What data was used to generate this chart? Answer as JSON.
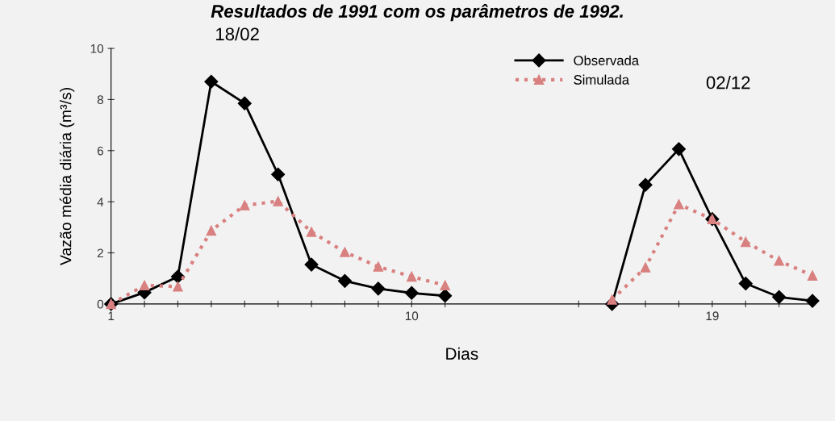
{
  "chart_data": {
    "type": "line",
    "title": "Resultados de 1991 com os parâmetros de 1992.",
    "xlabel": "Dias",
    "ylabel": "Vazão média diária (m³/s)",
    "annotations": [
      "18/02",
      "02/12"
    ],
    "x": [
      1,
      2,
      3,
      4,
      5,
      6,
      7,
      8,
      9,
      10,
      11,
      12,
      16,
      17,
      18,
      19,
      20,
      21,
      22
    ],
    "series": [
      {
        "name": "Observada",
        "color": "#000000",
        "marker": "diamond",
        "line_style": "solid",
        "values": [
          0,
          0.45,
          1.07,
          8.7,
          7.85,
          5.07,
          1.54,
          0.9,
          0.6,
          0.43,
          0.32,
          null,
          0,
          4.66,
          6.06,
          3.32,
          0.8,
          0.27,
          0.12
        ]
      },
      {
        "name": "Simulada",
        "color": "#d98080",
        "marker": "triangle",
        "line_style": "dotted",
        "values": [
          0,
          0.73,
          0.68,
          2.87,
          3.86,
          4.02,
          2.82,
          2.03,
          1.46,
          1.07,
          0.73,
          null,
          0.17,
          1.43,
          3.9,
          3.32,
          2.43,
          1.69,
          1.11
        ]
      }
    ],
    "xlim": [
      1,
      22
    ],
    "xticks": [
      1,
      {
        "value": 2,
        "label": null
      },
      {
        "value": 3,
        "label": null
      },
      {
        "value": 4,
        "label": null
      },
      {
        "value": 5,
        "label": null
      },
      {
        "value": 6,
        "label": null
      },
      {
        "value": 7,
        "label": null
      },
      {
        "value": 8,
        "label": null
      },
      {
        "value": 9,
        "label": null
      },
      10,
      {
        "value": 11,
        "label": null
      },
      {
        "value": 15,
        "label": null
      },
      {
        "value": 16,
        "label": null
      },
      {
        "value": 17,
        "label": null
      },
      {
        "value": 18,
        "label": null
      },
      19,
      {
        "value": 20,
        "label": null
      },
      {
        "value": 21,
        "label": null
      },
      {
        "value": 22,
        "label": null
      }
    ],
    "ylim": [
      0,
      10
    ],
    "yticks": [
      0,
      2,
      4,
      6,
      8,
      10
    ],
    "grid": false,
    "legend": "top right"
  }
}
